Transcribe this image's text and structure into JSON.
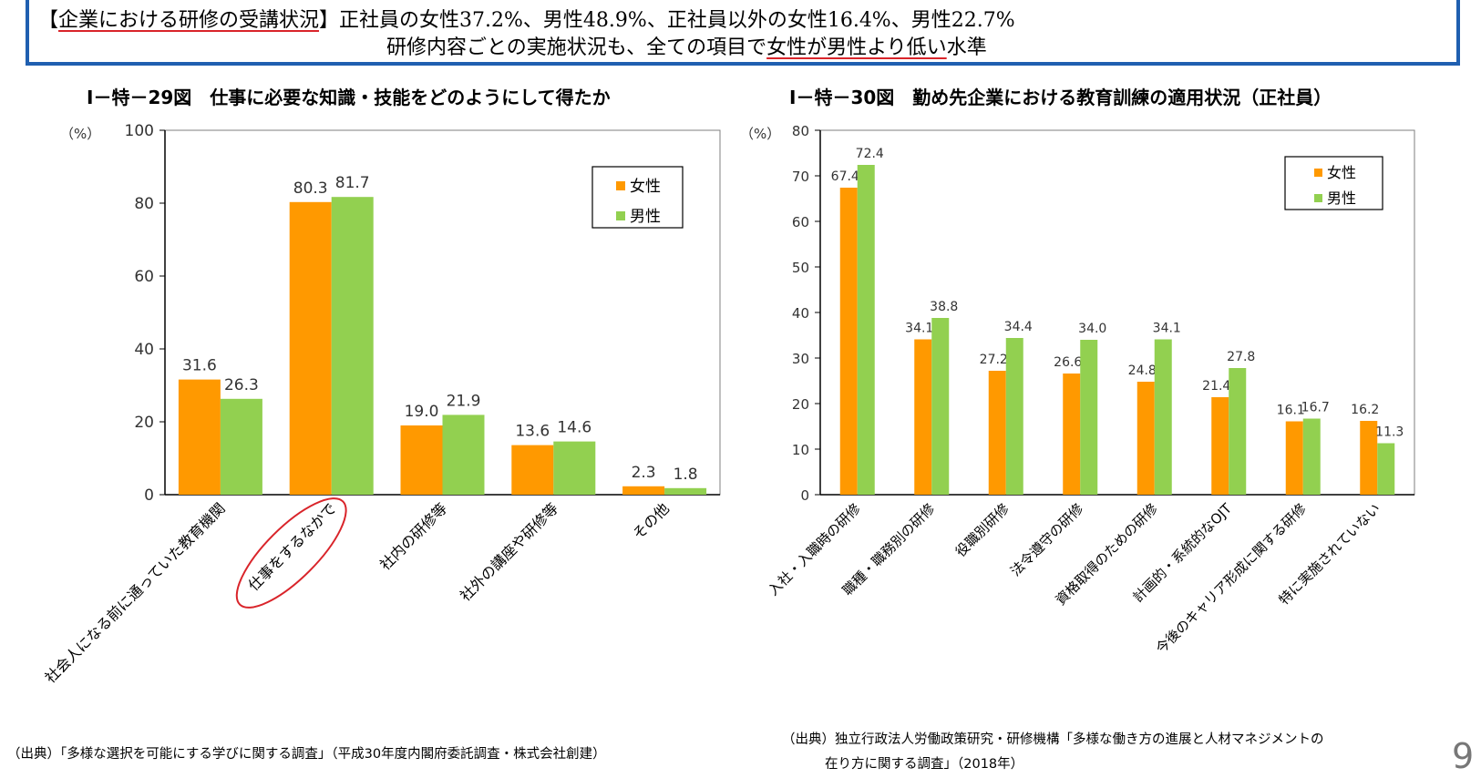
{
  "summary": {
    "bracket_open": "【",
    "label": "企業における研修の受講状況",
    "bracket_close": "】",
    "line1_text": "正社員の女性37.2%、男性48.9%、正社員以外の女性16.4%、男性22.7%",
    "line2_pre": "研修内容ごとの実施状況も、全ての項目で",
    "line2_emph": "女性が男性より低い",
    "line2_post": "水準"
  },
  "colors": {
    "female": "#ff9900",
    "male": "#92d050",
    "frame_blue": "#1f5fb0",
    "highlight_red": "#d9242a"
  },
  "chart_data": [
    {
      "type": "bar",
      "title": "Ⅰ－特－29図　仕事に必要な知識・技能をどのようにして得たか",
      "ylabel": "（%）",
      "ylim": [
        0,
        100
      ],
      "yticks": [
        "0",
        "20",
        "40",
        "60",
        "80",
        "100"
      ],
      "categories": [
        "社会人になる前に通っていた教育機関",
        "仕事をするなかで",
        "社内の研修等",
        "社外の講座や研修等",
        "その他"
      ],
      "highlighted_category": "仕事をするなかで",
      "series": [
        {
          "name": "女性",
          "values": [
            31.6,
            80.3,
            19.0,
            13.6,
            2.3
          ],
          "labels": [
            "31.6",
            "80.3",
            "19.0",
            "13.6",
            "2.3"
          ]
        },
        {
          "name": "男性",
          "values": [
            26.3,
            81.7,
            21.9,
            14.6,
            1.8
          ],
          "labels": [
            "26.3",
            "81.7",
            "21.9",
            "14.6",
            "1.8"
          ]
        }
      ],
      "legend": [
        "女性",
        "男性"
      ],
      "legend_position": "top-right",
      "grid": false
    },
    {
      "type": "bar",
      "title": "Ⅰ－特－30図　勤め先企業における教育訓練の適用状況（正社員）",
      "ylabel": "（%）",
      "ylim": [
        0,
        80
      ],
      "yticks": [
        "0",
        "10",
        "20",
        "30",
        "40",
        "50",
        "60",
        "70",
        "80"
      ],
      "categories": [
        "入社・入職時の研修",
        "職種・職務別の研修",
        "役職別研修",
        "法令遵守の研修",
        "資格取得のための研修",
        "計画的・系統的なOJT",
        "今後のキャリア形成に関する研修",
        "特に実施されていない"
      ],
      "series": [
        {
          "name": "女性",
          "values": [
            67.4,
            34.1,
            27.2,
            26.6,
            24.8,
            21.4,
            16.1,
            16.2
          ],
          "labels": [
            "67.4",
            "34.1",
            "27.2",
            "26.6",
            "24.8",
            "21.4",
            "16.1",
            "16.2"
          ]
        },
        {
          "name": "男性",
          "values": [
            72.4,
            38.8,
            34.4,
            34.0,
            34.1,
            27.8,
            16.7,
            11.3
          ],
          "labels": [
            "72.4",
            "38.8",
            "34.4",
            "34.0",
            "34.1",
            "27.8",
            "16.7",
            "11.3"
          ]
        }
      ],
      "legend": [
        "女性",
        "男性"
      ],
      "legend_position": "top-right",
      "grid": false
    }
  ],
  "sources": {
    "left": "（出典）「多様な選択を可能にする学びに関する調査」（平成30年度内閣府委託調査・株式会社創建）",
    "right_line1": "（出典）独立行政法人労働政策研究・研修機構「多様な働き方の進展と人材マネジメントの",
    "right_line2": "在り方に関する調査」（2018年）"
  },
  "page_number": "9"
}
